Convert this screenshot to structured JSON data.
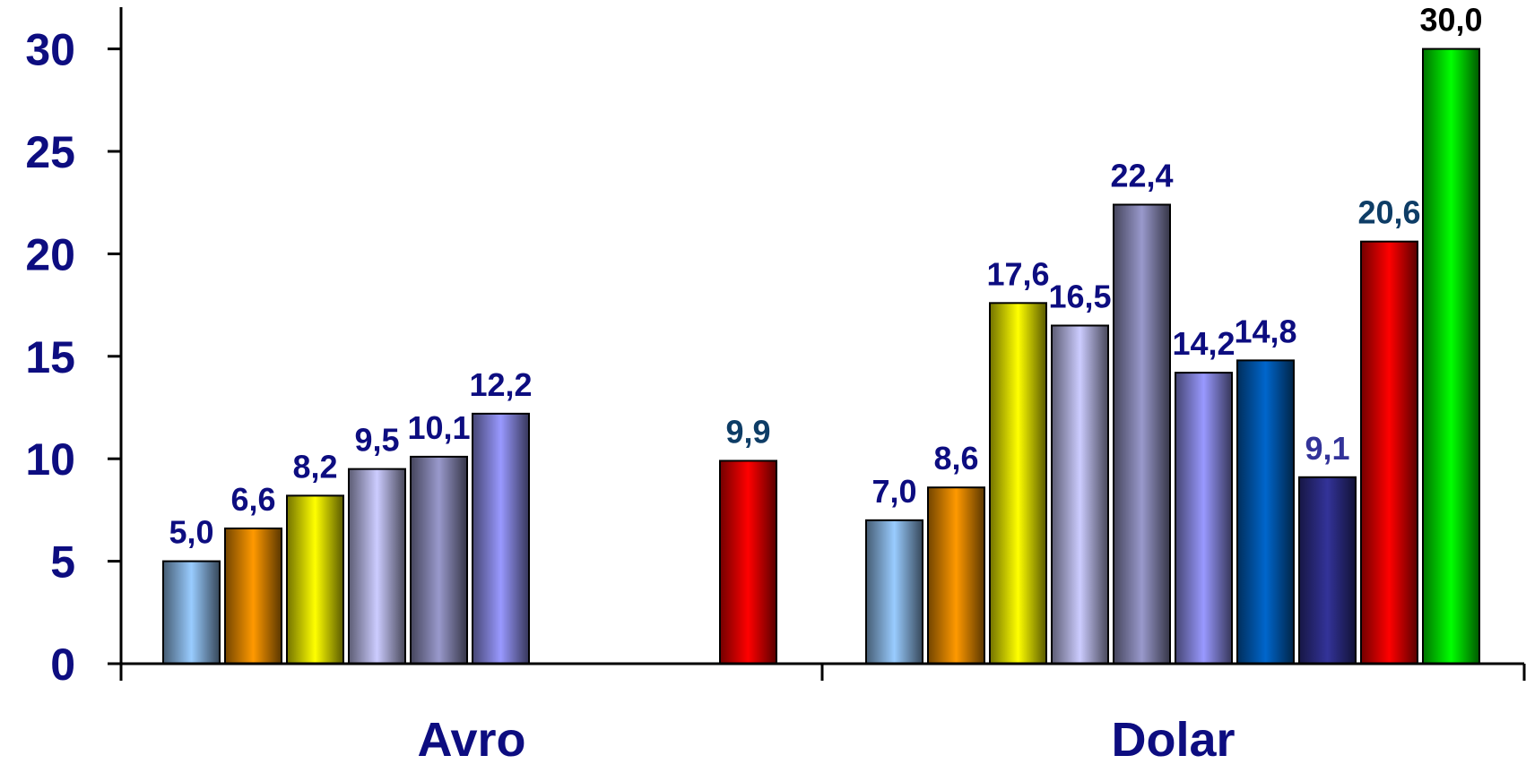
{
  "chart_data": {
    "type": "bar",
    "title": "",
    "xlabel": "",
    "ylabel": "",
    "ylim": [
      0,
      32
    ],
    "yticks": [
      0,
      5,
      10,
      15,
      20,
      25,
      30
    ],
    "ytick_labels": [
      "0",
      "5",
      "10",
      "15",
      "20",
      "25",
      "30"
    ],
    "grid": false,
    "legend": "none",
    "categories": [
      "Avro",
      "Dolar"
    ],
    "groups": [
      {
        "category": "Avro",
        "bars": [
          {
            "value": 5.0,
            "label": "5,0",
            "color": "#99ccff",
            "label_color": "#0d0d80"
          },
          {
            "value": 6.6,
            "label": "6,6",
            "color": "#ff9900",
            "label_color": "#0d0d80"
          },
          {
            "value": 8.2,
            "label": "8,2",
            "color": "#ffff00",
            "label_color": "#0d0d80"
          },
          {
            "value": 9.5,
            "label": "9,5",
            "color": "#ccccff",
            "label_color": "#0d0d80"
          },
          {
            "value": 10.1,
            "label": "10,1",
            "color": "#9999cc",
            "label_color": "#0d0d80"
          },
          {
            "value": 12.2,
            "label": "12,2",
            "color": "#9999ff",
            "label_color": "#0d0d80"
          },
          {
            "value": null,
            "label": "",
            "color": "",
            "label_color": ""
          },
          {
            "value": null,
            "label": "",
            "color": "",
            "label_color": ""
          },
          {
            "value": null,
            "label": "",
            "color": "",
            "label_color": ""
          },
          {
            "value": 9.9,
            "label": "9,9",
            "color": "#ff0000",
            "label_color": "#0e3d66"
          }
        ]
      },
      {
        "category": "Dolar",
        "bars": [
          {
            "value": 7.0,
            "label": "7,0",
            "color": "#99ccff",
            "label_color": "#0d0d80"
          },
          {
            "value": 8.6,
            "label": "8,6",
            "color": "#ff9900",
            "label_color": "#0d0d80"
          },
          {
            "value": 17.6,
            "label": "17,6",
            "color": "#ffff00",
            "label_color": "#0d0d80"
          },
          {
            "value": 16.5,
            "label": "16,5",
            "color": "#ccccff",
            "label_color": "#0d0d80"
          },
          {
            "value": 22.4,
            "label": "22,4",
            "color": "#9999cc",
            "label_color": "#0d0d80"
          },
          {
            "value": 14.2,
            "label": "14,2",
            "color": "#9999ff",
            "label_color": "#0d0d80"
          },
          {
            "value": 14.8,
            "label": "14,8",
            "color": "#0066cc",
            "label_color": "#0d0d80"
          },
          {
            "value": 9.1,
            "label": "9,1",
            "color": "#333399",
            "label_color": "#333399"
          },
          {
            "value": 20.6,
            "label": "20,6",
            "color": "#ff0000",
            "label_color": "#0e3d66"
          },
          {
            "value": 30.0,
            "label": "30,0",
            "color": "#00ff00",
            "label_color": "#000000"
          }
        ]
      }
    ]
  }
}
